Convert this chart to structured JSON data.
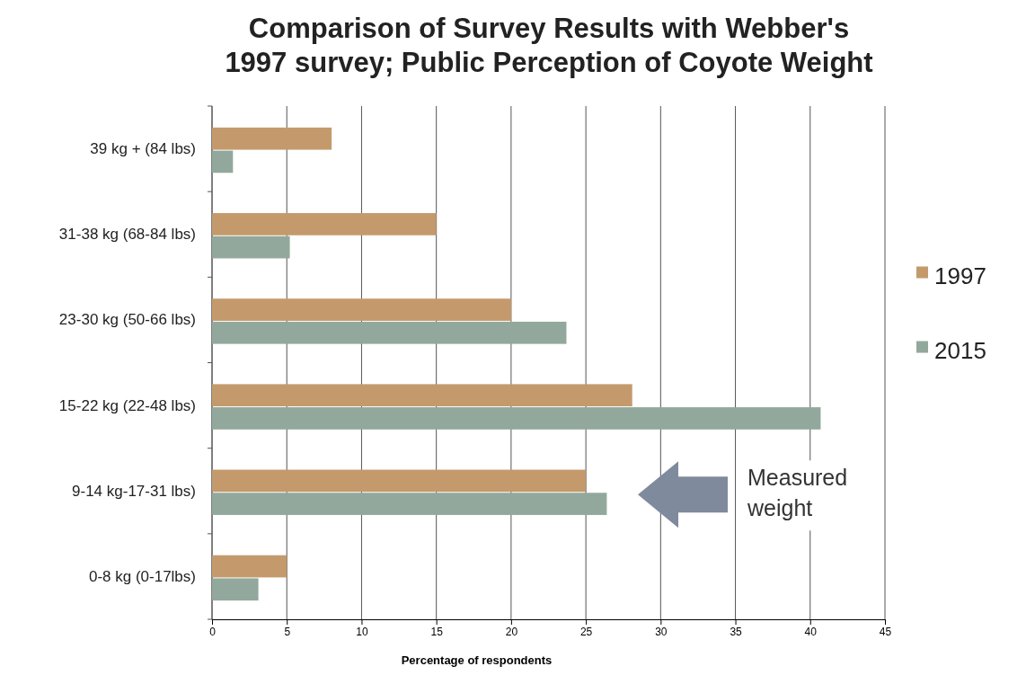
{
  "chart_data": {
    "type": "bar",
    "orientation": "horizontal",
    "title": "Comparison of Survey Results with Webber's 1997 survey; Public Perception of Coyote Weight",
    "xlabel": "Percentage of respondents",
    "categories": [
      "39 kg + (84 lbs)",
      "31-38 kg (68-84 lbs)",
      "23-30 kg (50-66 lbs)",
      "15-22 kg (22-48 lbs)",
      "9-14 kg-17-31 lbs)",
      "0-8 kg (0-17lbs)"
    ],
    "series": [
      {
        "name": "1997",
        "color": "#c49a6c",
        "values": [
          8,
          15,
          20,
          28.1,
          25,
          5
        ]
      },
      {
        "name": "2015",
        "color": "#93a89c",
        "values": [
          1.4,
          5.2,
          23.7,
          40.7,
          26.4,
          3.1
        ]
      }
    ],
    "xlim": [
      0,
      45
    ],
    "xticks": [
      0,
      5,
      10,
      15,
      20,
      25,
      30,
      35,
      40,
      45
    ],
    "grid": "x",
    "legend": "right",
    "annotations": [
      "Measured weight"
    ]
  }
}
